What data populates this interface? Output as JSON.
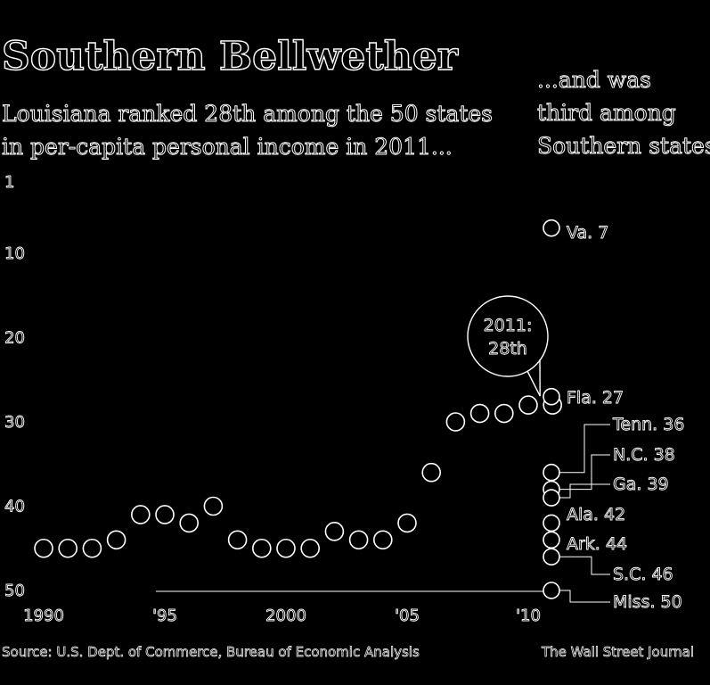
{
  "header": {
    "title": "Southern Bellwether",
    "subtitle_line1": "Louisiana ranked 28th among the 50 states",
    "subtitle_line2": "in per-capita personal income in 2011...",
    "side_line1": "...and was",
    "side_line2": "third among",
    "side_line3": "Southern states"
  },
  "footer": {
    "source": "Source: U.S. Dept. of Commerce, Bureau of Economic Analysis",
    "credit": "The Wall Street Journal"
  },
  "chart_data": {
    "type": "scatter",
    "y_axis": {
      "reversed": true,
      "ylim": [
        1,
        50
      ],
      "ticks": [
        "1",
        "10",
        "20",
        "30",
        "40",
        "50"
      ]
    },
    "x_axis": {
      "xlim": [
        1990,
        2011
      ],
      "ticks": [
        "1990",
        "'95",
        "2000",
        "'05",
        "'10"
      ]
    },
    "series": [
      {
        "x": [
          1990,
          1991,
          1992,
          1993,
          1994,
          1995,
          1996,
          1997,
          1998,
          1999,
          2000,
          2001,
          2002,
          2003,
          2004,
          2005,
          2006,
          2007,
          2008,
          2009,
          2010,
          2011
        ],
        "values": [
          45,
          45,
          45,
          44,
          41,
          41,
          42,
          40,
          44,
          45,
          45,
          45,
          43,
          44,
          44,
          42,
          36,
          30,
          29,
          29,
          28,
          28
        ]
      }
    ],
    "callout": {
      "line1": "2011:",
      "line2": "28th"
    },
    "southern_states": [
      {
        "label": "Va. 7",
        "rank": 7
      },
      {
        "label": "Fla. 27",
        "rank": 27
      },
      {
        "label": "Tenn. 36",
        "rank": 36
      },
      {
        "label": "N.C. 38",
        "rank": 38
      },
      {
        "label": "Ga. 39",
        "rank": 39
      },
      {
        "label": "Ala. 42",
        "rank": 42
      },
      {
        "label": "Ark. 44",
        "rank": 44
      },
      {
        "label": "S.C. 46",
        "rank": 46
      },
      {
        "label": "Miss. 50",
        "rank": 50
      }
    ]
  }
}
